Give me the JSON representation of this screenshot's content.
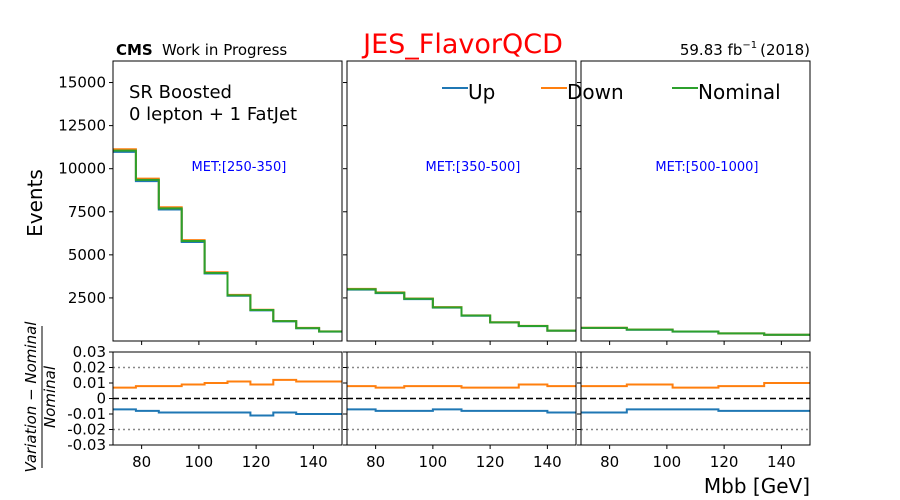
{
  "header": {
    "cms": "CMS",
    "wip": "Work in Progress",
    "title": "JES_FlavorQCD",
    "title_color": "#ff0000",
    "lumi_value": "59.83 fb",
    "lumi_exp": "−1",
    "lumi_year": "(2018)"
  },
  "chart_data": {
    "type": "step",
    "region_line1": "SR Boosted",
    "region_line2": "0 lepton + 1 FatJet",
    "ylabel": "Events",
    "ratio_ylabel_num": "Variation − Nominal",
    "ratio_ylabel_den": "Nominal",
    "xlabel": "Mbb [GeV]",
    "xlim": [
      70,
      150
    ],
    "ylim": [
      0,
      16250
    ],
    "ratio_ylim": [
      -0.03,
      0.03
    ],
    "xticks": [
      "80",
      "100",
      "120",
      "140"
    ],
    "yticks": [
      "2500",
      "5000",
      "7500",
      "10000",
      "12500",
      "15000"
    ],
    "ratio_yticks": [
      "-0.03",
      "-0.02",
      "-0.01",
      "0",
      "0.01",
      "0.02",
      "0.03"
    ],
    "colors": {
      "Up": "#1f77b4",
      "Down": "#ff7f0e",
      "Nominal": "#2ca02c",
      "label": "#0000ff"
    },
    "legend": [
      "Up",
      "Down",
      "Nominal"
    ],
    "panels": [
      {
        "label": "MET:[250-350]",
        "edges": [
          70,
          78,
          86,
          94,
          102,
          110,
          118,
          126,
          134,
          142,
          150
        ],
        "nominal": [
          11050,
          9350,
          7700,
          5800,
          3950,
          2650,
          1800,
          1150,
          750,
          550
        ],
        "up_ratio": [
          -0.007,
          -0.008,
          -0.009,
          -0.009,
          -0.009,
          -0.009,
          -0.011,
          -0.009,
          -0.01,
          -0.01
        ],
        "down_ratio": [
          0.007,
          0.008,
          0.008,
          0.009,
          0.01,
          0.011,
          0.009,
          0.012,
          0.011,
          0.011
        ]
      },
      {
        "label": "MET:[350-500]",
        "edges": [
          70,
          80,
          90,
          100,
          110,
          120,
          130,
          140,
          150
        ],
        "nominal": [
          3000,
          2800,
          2450,
          1950,
          1480,
          1080,
          870,
          600
        ],
        "up_ratio": [
          -0.007,
          -0.008,
          -0.008,
          -0.007,
          -0.008,
          -0.008,
          -0.008,
          -0.009
        ],
        "down_ratio": [
          0.008,
          0.007,
          0.008,
          0.008,
          0.007,
          0.007,
          0.009,
          0.008
        ]
      },
      {
        "label": "MET:[500-1000]",
        "edges": [
          70,
          86,
          102,
          118,
          134,
          150
        ],
        "nominal": [
          760,
          660,
          550,
          440,
          360
        ],
        "up_ratio": [
          -0.009,
          -0.007,
          -0.007,
          -0.008,
          -0.008
        ],
        "down_ratio": [
          0.008,
          0.009,
          0.007,
          0.008,
          0.01
        ]
      }
    ]
  }
}
